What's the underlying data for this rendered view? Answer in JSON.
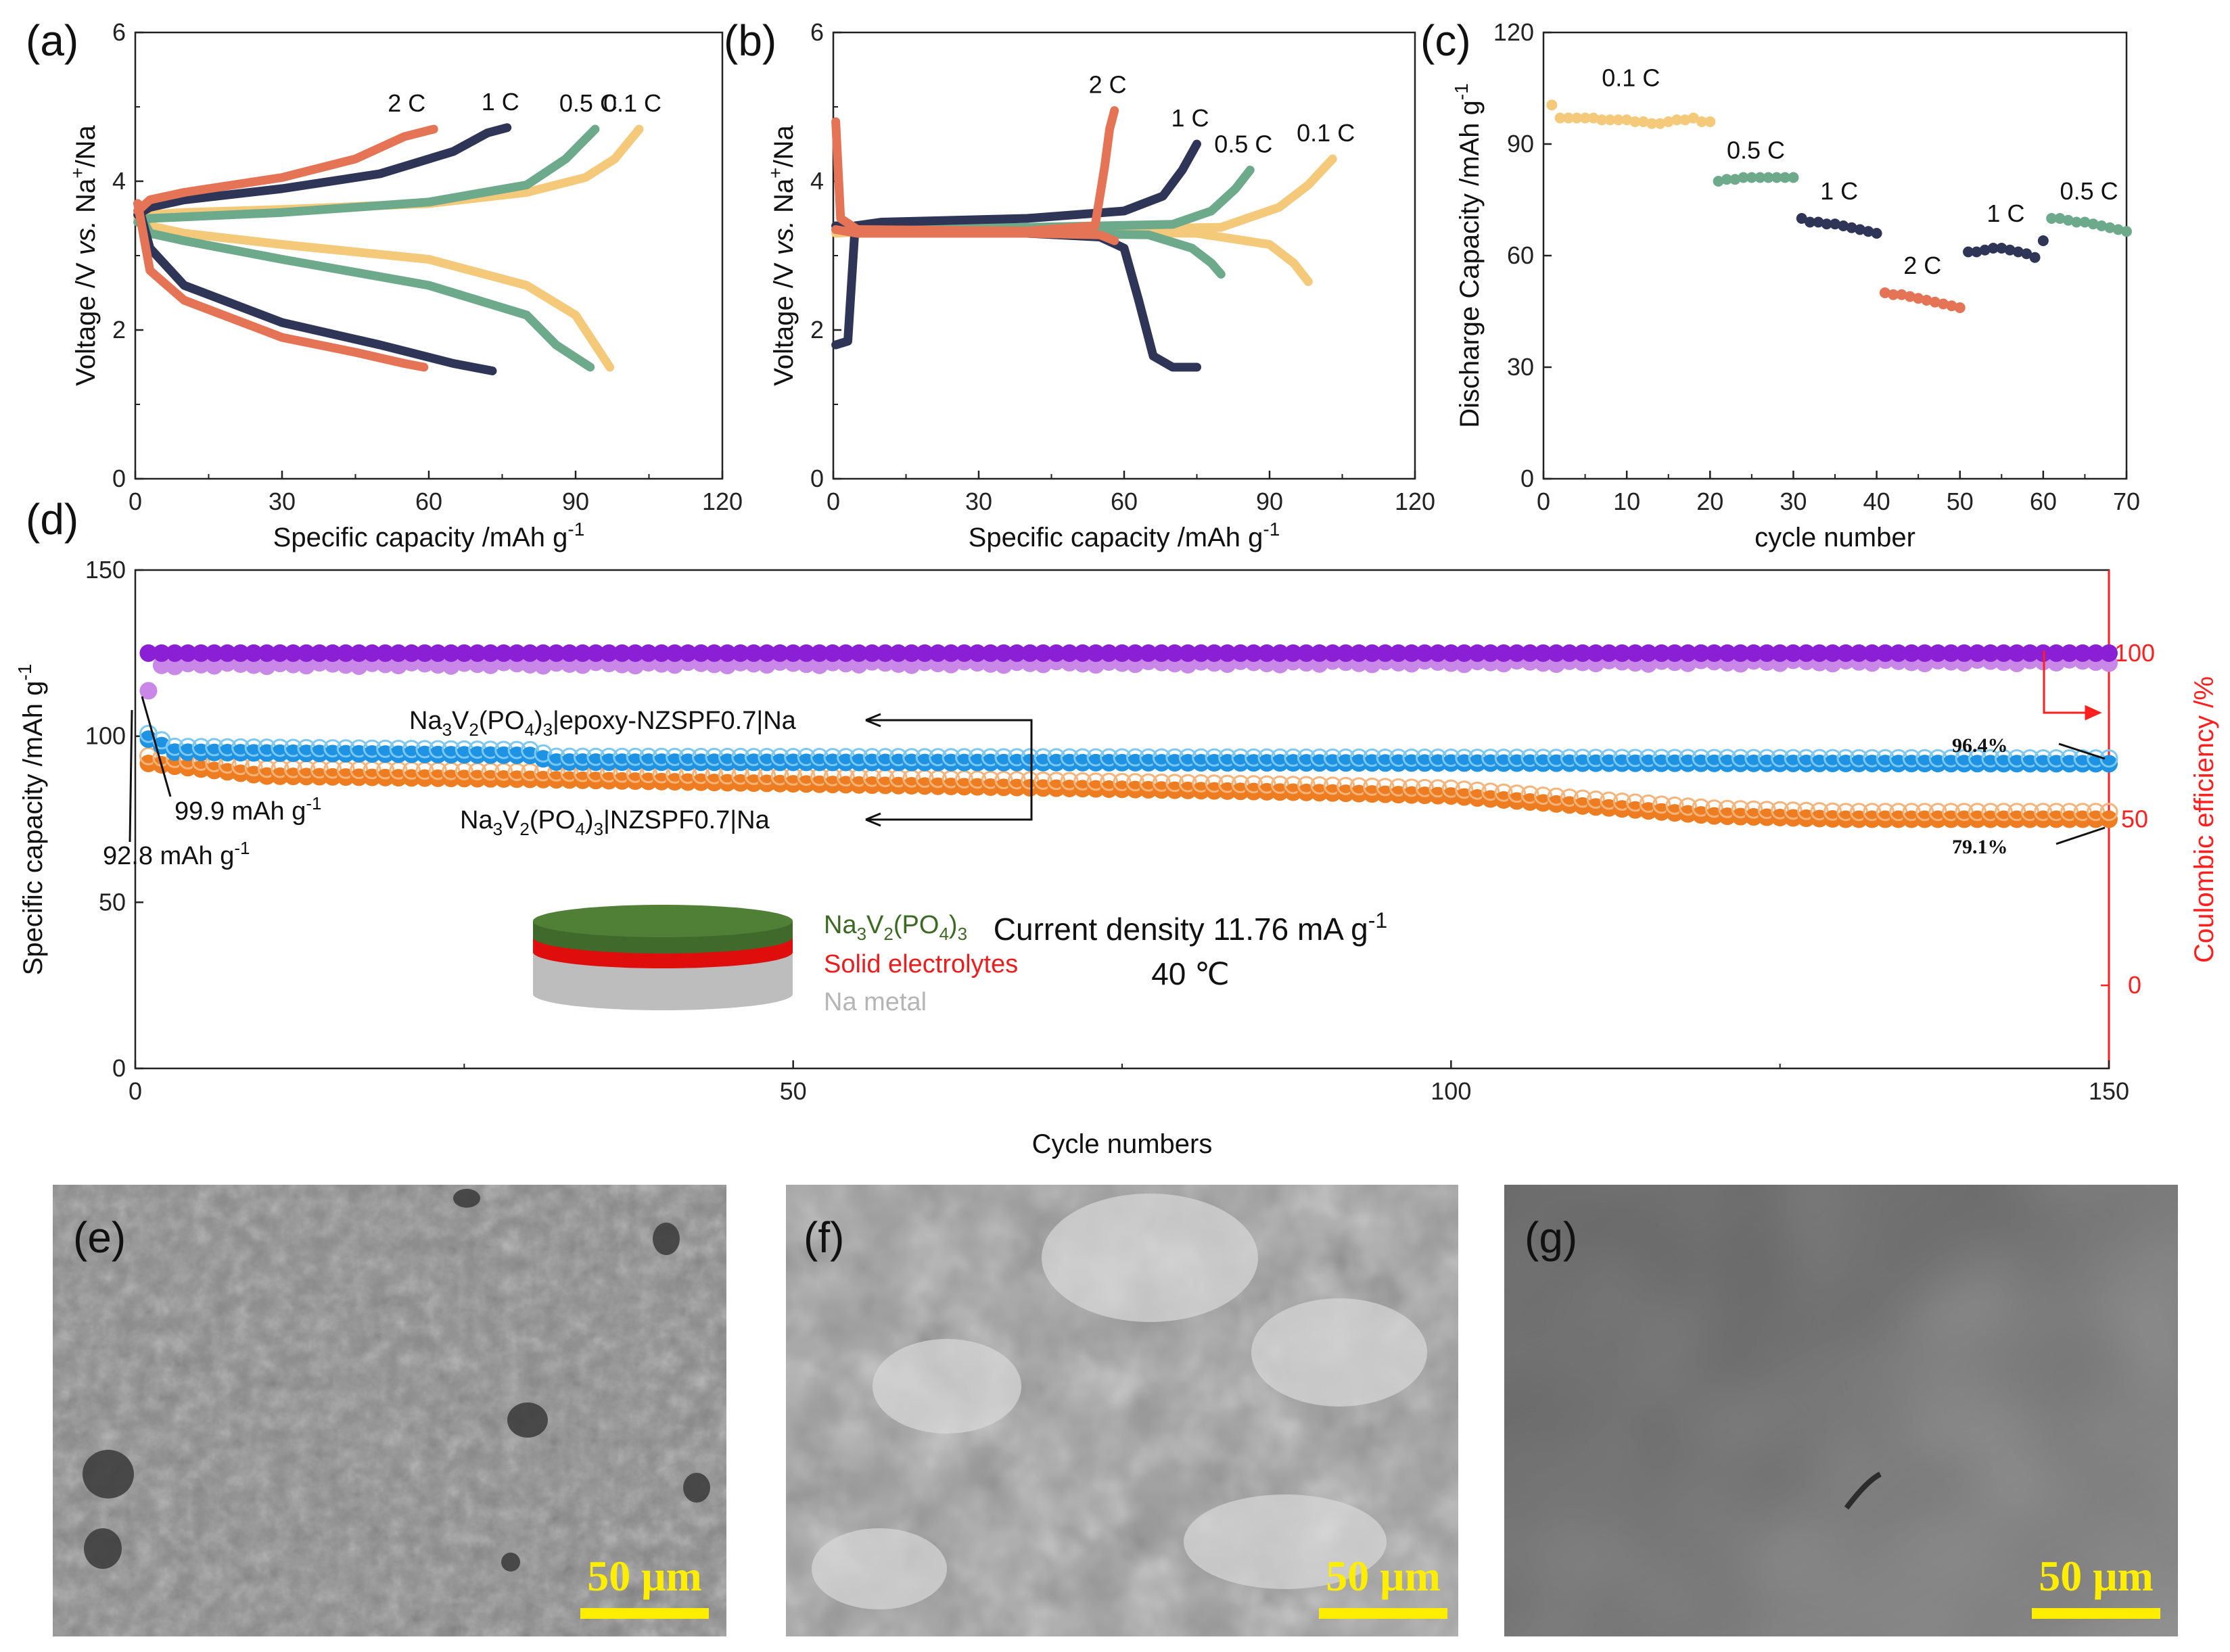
{
  "colors": {
    "c01": "#f5c97a",
    "c05": "#6daa8c",
    "c1": "#2e3557",
    "c2": "#e57456",
    "purple_filled": "#8a1fd6",
    "purple_open": "#c987e8",
    "blue_filled": "#1e93e3",
    "blue_open": "#7cc8f2",
    "orange_filled": "#ee7d22",
    "orange_open": "#f6b37a",
    "red_axis": "#ff1f1f",
    "scalebar": "#ffee00"
  },
  "panels": {
    "a": {
      "label": "(a)",
      "xlabel": "Specific capacity /mAh g",
      "xlabel_sup": "-1",
      "ylabel_pre": "Voltage /V ",
      "ylabel_it": "vs.",
      "ylabel_mid": " Na",
      "ylabel_sup": "+",
      "ylabel_post": "/Na"
    },
    "b": {
      "label": "(b)",
      "xlabel": "Specific capacity  /mAh g",
      "xlabel_sup": "-1",
      "ylabel_pre": "Voltage /V ",
      "ylabel_it": "vs.",
      "ylabel_mid": " Na",
      "ylabel_sup": "+",
      "ylabel_post": "/Na"
    },
    "c": {
      "label": "(c)",
      "xlabel": "cycle  number",
      "ylabel": "Discharge Capacity /mAh g",
      "ylabel_sup": "-1"
    },
    "d": {
      "label": "(d)",
      "xlabel": "Cycle numbers",
      "ylabel": "Specific capacity /mAh g",
      "ylabel_sup": "-1",
      "y2label": "Coulombic efficiency /%"
    },
    "e": {
      "label": "(e)",
      "scalebar": "50 μm"
    },
    "f": {
      "label": "(f)",
      "scalebar": "50 μm"
    },
    "g": {
      "label": "(g)",
      "scalebar": "50 μm"
    }
  },
  "annotations_d": {
    "legend_epoxy": {
      "a": "Na",
      "b": "3",
      "c": "V",
      "d": "2",
      "e": "(PO",
      "f": "4",
      "g": ")",
      "h": "3",
      "i": "|epoxy-NZSPF0.7|Na"
    },
    "legend_plain": {
      "a": "Na",
      "b": "3",
      "c": "V",
      "d": "2",
      "e": "(PO",
      "f": "4",
      "g": ")",
      "h": "3",
      "i": "|NZSPF0.7|Na"
    },
    "cap1": "99.9 mAh g",
    "cap1_sup": "-1",
    "cap2": "92.8 mAh g",
    "cap2_sup": "-1",
    "ret1": "96.4%",
    "ret2": "79.1%",
    "current": "Current density 11.76 mA g",
    "current_sup": "-1",
    "temp": "40 ℃",
    "layer_top": {
      "a": "Na",
      "b": "3",
      "c": "V",
      "d": "2",
      "e": "(PO",
      "f": "4",
      "g": ")",
      "h": "3"
    },
    "layer_mid": "Solid electrolytes",
    "layer_bot": "Na metal"
  },
  "chart_data": [
    {
      "panel": "a",
      "type": "line",
      "xlim": [
        0,
        120
      ],
      "ylim": [
        0,
        6
      ],
      "xticks": [
        0,
        30,
        60,
        90,
        120
      ],
      "yticks": [
        0,
        2,
        4,
        6
      ],
      "series": [
        {
          "name": "0.1 C",
          "charge": [
            [
              0.5,
              3.5
            ],
            [
              3,
              3.55
            ],
            [
              10,
              3.58
            ],
            [
              30,
              3.62
            ],
            [
              60,
              3.7
            ],
            [
              80,
              3.85
            ],
            [
              92,
              4.05
            ],
            [
              98,
              4.3
            ],
            [
              103,
              4.7
            ]
          ],
          "discharge": [
            [
              0.5,
              3.6
            ],
            [
              3,
              3.4
            ],
            [
              10,
              3.3
            ],
            [
              30,
              3.15
            ],
            [
              60,
              2.95
            ],
            [
              80,
              2.6
            ],
            [
              90,
              2.2
            ],
            [
              95,
              1.7
            ],
            [
              97,
              1.5
            ]
          ]
        },
        {
          "name": "0.5 C",
          "charge": [
            [
              0.5,
              3.45
            ],
            [
              3,
              3.5
            ],
            [
              10,
              3.52
            ],
            [
              30,
              3.58
            ],
            [
              60,
              3.72
            ],
            [
              80,
              3.95
            ],
            [
              88,
              4.3
            ],
            [
              94,
              4.7
            ]
          ],
          "discharge": [
            [
              0.5,
              3.6
            ],
            [
              3,
              3.3
            ],
            [
              10,
              3.2
            ],
            [
              30,
              2.95
            ],
            [
              60,
              2.6
            ],
            [
              80,
              2.2
            ],
            [
              86,
              1.8
            ],
            [
              93,
              1.5
            ]
          ]
        },
        {
          "name": "1 C",
          "charge": [
            [
              0.5,
              3.55
            ],
            [
              3,
              3.65
            ],
            [
              10,
              3.75
            ],
            [
              30,
              3.9
            ],
            [
              50,
              4.1
            ],
            [
              65,
              4.4
            ],
            [
              72,
              4.65
            ],
            [
              76,
              4.72
            ]
          ],
          "discharge": [
            [
              0.5,
              3.7
            ],
            [
              3,
              3.1
            ],
            [
              10,
              2.6
            ],
            [
              30,
              2.1
            ],
            [
              50,
              1.8
            ],
            [
              65,
              1.55
            ],
            [
              73,
              1.45
            ]
          ]
        },
        {
          "name": "2 C",
          "charge": [
            [
              0.5,
              3.6
            ],
            [
              3,
              3.75
            ],
            [
              10,
              3.85
            ],
            [
              30,
              4.05
            ],
            [
              45,
              4.3
            ],
            [
              55,
              4.6
            ],
            [
              61,
              4.7
            ]
          ],
          "discharge": [
            [
              0.5,
              3.7
            ],
            [
              3,
              2.8
            ],
            [
              10,
              2.4
            ],
            [
              30,
              1.9
            ],
            [
              45,
              1.7
            ],
            [
              55,
              1.55
            ],
            [
              59,
              1.5
            ]
          ]
        }
      ]
    },
    {
      "panel": "b",
      "type": "line",
      "xlim": [
        0,
        120
      ],
      "ylim": [
        0,
        6
      ],
      "xticks": [
        0,
        30,
        60,
        90,
        120
      ],
      "yticks": [
        0,
        2,
        4,
        6
      ],
      "series": [
        {
          "name": "0.1 C",
          "charge": [
            [
              0.5,
              3.3
            ],
            [
              5,
              3.32
            ],
            [
              40,
              3.34
            ],
            [
              80,
              3.38
            ],
            [
              92,
              3.65
            ],
            [
              98,
              3.95
            ],
            [
              103,
              4.3
            ]
          ],
          "discharge": [
            [
              0.5,
              3.4
            ],
            [
              5,
              3.35
            ],
            [
              40,
              3.32
            ],
            [
              75,
              3.3
            ],
            [
              90,
              3.15
            ],
            [
              95,
              2.9
            ],
            [
              98,
              2.65
            ]
          ]
        },
        {
          "name": "0.5 C",
          "charge": [
            [
              0.5,
              3.35
            ],
            [
              5,
              3.36
            ],
            [
              40,
              3.38
            ],
            [
              70,
              3.42
            ],
            [
              78,
              3.6
            ],
            [
              83,
              3.9
            ],
            [
              86,
              4.15
            ]
          ],
          "discharge": [
            [
              0.5,
              3.4
            ],
            [
              5,
              3.35
            ],
            [
              40,
              3.3
            ],
            [
              65,
              3.28
            ],
            [
              74,
              3.1
            ],
            [
              78,
              2.9
            ],
            [
              80,
              2.75
            ]
          ]
        },
        {
          "name": "1 C",
          "charge": [
            [
              0.5,
              1.8
            ],
            [
              3,
              1.85
            ],
            [
              4.5,
              3.4
            ],
            [
              10,
              3.45
            ],
            [
              40,
              3.5
            ],
            [
              60,
              3.6
            ],
            [
              68,
              3.8
            ],
            [
              72,
              4.15
            ],
            [
              75,
              4.5
            ]
          ],
          "discharge": [
            [
              0.5,
              3.4
            ],
            [
              10,
              3.35
            ],
            [
              40,
              3.3
            ],
            [
              55,
              3.25
            ],
            [
              60,
              3.1
            ],
            [
              63,
              2.4
            ],
            [
              66,
              1.65
            ],
            [
              70,
              1.5
            ],
            [
              75,
              1.5
            ]
          ]
        },
        {
          "name": "2 C",
          "charge": [
            [
              0.5,
              4.8
            ],
            [
              1.5,
              3.5
            ],
            [
              5,
              3.35
            ],
            [
              40,
              3.33
            ],
            [
              54,
              3.4
            ],
            [
              56,
              4.2
            ],
            [
              57,
              4.7
            ],
            [
              58,
              4.95
            ]
          ],
          "discharge": [
            [
              0.5,
              3.35
            ],
            [
              5,
              3.3
            ],
            [
              40,
              3.3
            ],
            [
              55,
              3.28
            ],
            [
              58,
              3.2
            ]
          ]
        }
      ]
    },
    {
      "panel": "c",
      "type": "scatter",
      "xlim": [
        0,
        70
      ],
      "ylim": [
        0,
        120
      ],
      "xticks": [
        0,
        10,
        20,
        30,
        40,
        50,
        60,
        70
      ],
      "yticks": [
        0,
        30,
        60,
        90,
        120
      ],
      "series": [
        {
          "name": "0.1 C",
          "x_start": 1,
          "values": [
            100.5,
            97,
            97,
            97,
            97,
            97,
            96.5,
            96.5,
            96.5,
            96.5,
            96,
            96,
            95.5,
            95.5,
            96,
            96.5,
            96.5,
            97,
            96,
            96
          ]
        },
        {
          "name": "0.5 C",
          "x_start": 21,
          "values": [
            80,
            80.5,
            80.5,
            81,
            81,
            81,
            81,
            81,
            81,
            81
          ]
        },
        {
          "name": "1 C",
          "x_start": 31,
          "values": [
            70,
            69,
            69,
            68.5,
            68.5,
            68,
            67.5,
            67,
            66.5,
            66
          ]
        },
        {
          "name": "2 C",
          "x_start": 41,
          "values": [
            50,
            49.5,
            49.5,
            49,
            48.5,
            48,
            47.5,
            47,
            46.5,
            46
          ]
        },
        {
          "name": "1 C",
          "x_start": 51,
          "values": [
            61,
            61,
            61.5,
            62,
            62,
            61.5,
            61,
            60.5,
            59.5,
            64
          ]
        },
        {
          "name": "0.5 C",
          "x_start": 61,
          "values": [
            70,
            70,
            69.5,
            69,
            69,
            68.5,
            68,
            67.5,
            67,
            66.5
          ]
        }
      ]
    },
    {
      "panel": "d",
      "type": "scatter",
      "xlim": [
        0,
        150
      ],
      "ylim": [
        0,
        150
      ],
      "y2lim": [
        -25,
        125
      ],
      "xticks": [
        0,
        50,
        100,
        150
      ],
      "yticks": [
        0,
        50,
        100,
        150
      ],
      "y2ticks": [
        0,
        50,
        100
      ],
      "series": [
        {
          "name": "Coulombic efficiency (filled)",
          "axis": "right",
          "start": 100,
          "end": 100
        },
        {
          "name": "Coulombic efficiency (open)",
          "axis": "right",
          "start": 97,
          "end": 98
        },
        {
          "name": "Na3V2(PO4)3|epoxy-NZSPF0.7|Na",
          "axis": "left",
          "start": 99.9,
          "end": 92.5,
          "profile": [
            [
              1,
              99.9
            ],
            [
              3,
              96
            ],
            [
              30,
              95
            ],
            [
              32,
              93
            ],
            [
              150,
              92.5
            ]
          ]
        },
        {
          "name": "Na3V2(PO4)3|NZSPF0.7|Na",
          "axis": "left",
          "start": 92.8,
          "end": 76,
          "profile": [
            [
              1,
              92.8
            ],
            [
              10,
              89
            ],
            [
              30,
              88
            ],
            [
              60,
              86
            ],
            [
              90,
              84
            ],
            [
              100,
              83
            ],
            [
              110,
              80
            ],
            [
              120,
              77
            ],
            [
              130,
              76
            ],
            [
              140,
              76
            ],
            [
              150,
              76
            ]
          ]
        }
      ],
      "annotations": [
        "99.9 mAh g-1",
        "92.8 mAh g-1",
        "96.4%",
        "79.1%",
        "Current density 11.76 mA g-1",
        "40 ℃"
      ]
    }
  ]
}
